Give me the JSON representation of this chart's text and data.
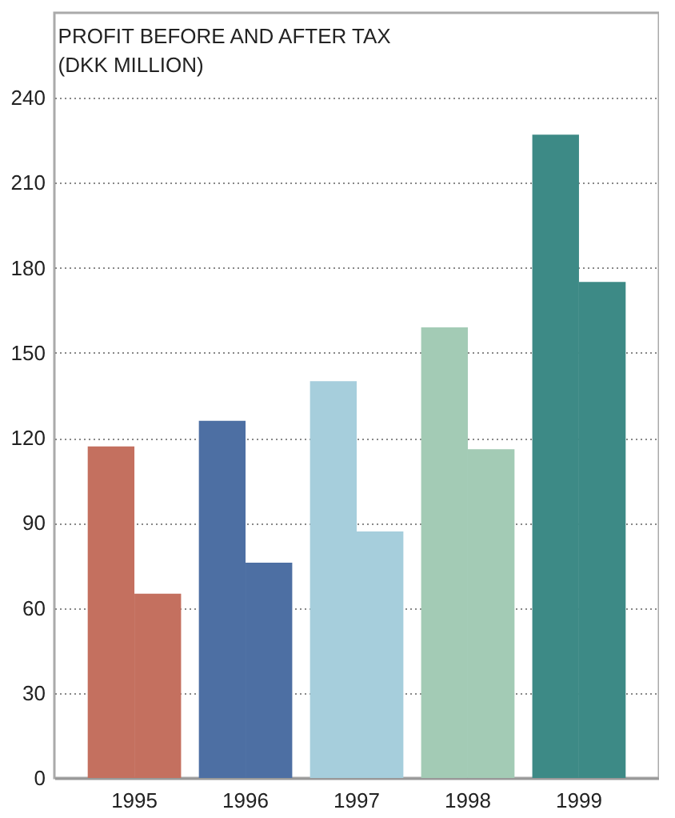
{
  "chart_data": {
    "type": "bar",
    "title": "PROFIT BEFORE AND AFTER TAX\n(DKK MILLION)",
    "categories": [
      "1995",
      "1996",
      "1997",
      "1998",
      "1999"
    ],
    "series": [
      {
        "colors": [
          "#c4705f",
          "#4d6fa3",
          "#a6cedc",
          "#a3cbb5",
          "#3d8a86"
        ],
        "values": [
          117,
          126,
          140,
          159,
          227
        ]
      },
      {
        "colors": [
          "#c4705f",
          "#4d6fa3",
          "#a6cedc",
          "#a3cbb5",
          "#3d8a86"
        ],
        "values": [
          65,
          76,
          87,
          116,
          175
        ]
      }
    ],
    "ylim": [
      0,
      270
    ],
    "yticks": [
      0,
      30,
      60,
      90,
      120,
      150,
      180,
      210,
      240
    ],
    "grid": "y"
  }
}
